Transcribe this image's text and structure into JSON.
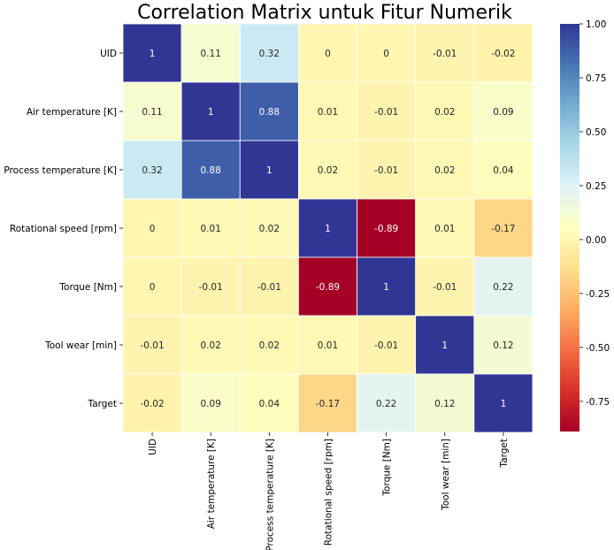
{
  "chart_data": {
    "type": "heatmap",
    "title": "Correlation Matrix untuk Fitur Numerik",
    "xlabel": "",
    "ylabel": "",
    "row_labels": [
      "UID",
      "Air temperature [K]",
      "Process temperature [K]",
      "Rotational speed [rpm]",
      "Torque [Nm]",
      "Tool wear [min]",
      "Target"
    ],
    "col_labels": [
      "UID",
      "Air temperature [K]",
      "Process temperature [K]",
      "Rotational speed [rpm]",
      "Torque [Nm]",
      "Tool wear [min]",
      "Target"
    ],
    "values": [
      [
        1,
        0.11,
        0.32,
        0,
        0,
        -0.01,
        -0.02
      ],
      [
        0.11,
        1,
        0.88,
        0.01,
        -0.01,
        0.02,
        0.09
      ],
      [
        0.32,
        0.88,
        1,
        0.02,
        -0.01,
        0.02,
        0.04
      ],
      [
        0,
        0.01,
        0.02,
        1,
        -0.89,
        0.01,
        -0.17
      ],
      [
        0,
        -0.01,
        -0.01,
        -0.89,
        1,
        -0.01,
        0.22
      ],
      [
        -0.01,
        0.02,
        0.02,
        0.01,
        -0.01,
        1,
        0.12
      ],
      [
        -0.02,
        0.09,
        0.04,
        -0.17,
        0.22,
        0.12,
        1
      ]
    ],
    "value_labels": [
      [
        "1",
        "0.11",
        "0.32",
        "0",
        "0",
        "-0.01",
        "-0.02"
      ],
      [
        "0.11",
        "1",
        "0.88",
        "0.01",
        "-0.01",
        "0.02",
        "0.09"
      ],
      [
        "0.32",
        "0.88",
        "1",
        "0.02",
        "-0.01",
        "0.02",
        "0.04"
      ],
      [
        "0",
        "0.01",
        "0.02",
        "1",
        "-0.89",
        "0.01",
        "-0.17"
      ],
      [
        "0",
        "-0.01",
        "-0.01",
        "-0.89",
        "1",
        "-0.01",
        "0.22"
      ],
      [
        "-0.01",
        "0.02",
        "0.02",
        "0.01",
        "-0.01",
        "1",
        "0.12"
      ],
      [
        "-0.02",
        "0.09",
        "0.04",
        "-0.17",
        "0.22",
        "0.12",
        "1"
      ]
    ],
    "colormap": "RdYlBu",
    "vmin": -0.89,
    "vmax": 1.0,
    "colorbar_ticks": [
      1.0,
      0.75,
      0.5,
      0.25,
      0.0,
      -0.25,
      -0.5,
      -0.75
    ],
    "colorbar_tick_labels": [
      "1.00",
      "0.75",
      "0.50",
      "0.25",
      "0.00",
      "-0.25",
      "-0.50",
      "-0.75"
    ],
    "gridlines": "white",
    "colorbar_position": "right"
  }
}
